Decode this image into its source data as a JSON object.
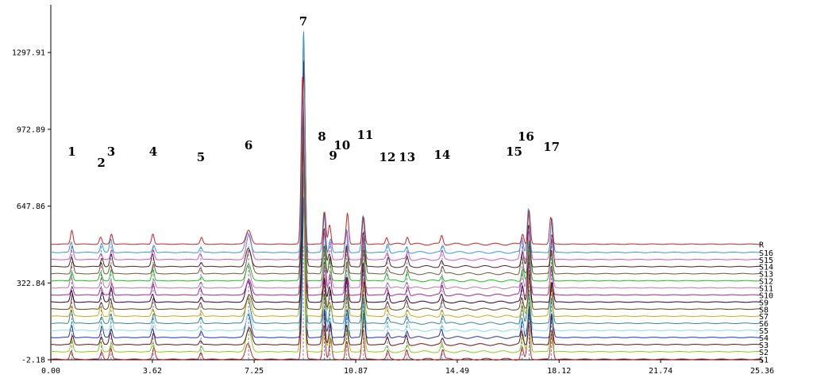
{
  "chart_data": {
    "type": "line",
    "title": "",
    "xlabel": "",
    "ylabel": "",
    "xlim": [
      0,
      25.36
    ],
    "ylim": [
      -2.18,
      1500
    ],
    "x_ticks": [
      "0.00",
      "3.62",
      "7.25",
      "10.87",
      "14.49",
      "18.12",
      "21.74",
      "25.36"
    ],
    "y_ticks": [
      "-2.18",
      "322.84",
      "647.86",
      "972.89",
      "1297.91"
    ],
    "grid": false,
    "legend": "none",
    "series": [
      {
        "name": "S1",
        "color": "#cc2222",
        "offset": 0
      },
      {
        "name": "S2",
        "color": "#88cc22",
        "offset": 32
      },
      {
        "name": "S3",
        "color": "#661111",
        "offset": 62
      },
      {
        "name": "S4",
        "color": "#2233aa",
        "offset": 92
      },
      {
        "name": "S5",
        "color": "#88dddd",
        "offset": 122
      },
      {
        "name": "S6",
        "color": "#338888",
        "offset": 152
      },
      {
        "name": "S7",
        "color": "#ccaa11",
        "offset": 182
      },
      {
        "name": "S8",
        "color": "#664422",
        "offset": 212
      },
      {
        "name": "S9",
        "color": "#330033",
        "offset": 242
      },
      {
        "name": "S10",
        "color": "#aa2299",
        "offset": 272
      },
      {
        "name": "S11",
        "color": "#bb77aa",
        "offset": 302
      },
      {
        "name": "S12",
        "color": "#22bb22",
        "offset": 332
      },
      {
        "name": "S13",
        "color": "#775533",
        "offset": 362
      },
      {
        "name": "S14",
        "color": "#552222",
        "offset": 392
      },
      {
        "name": "S15",
        "color": "#cc55cc",
        "offset": 422
      },
      {
        "name": "S16",
        "color": "#3399dd",
        "offset": 452
      },
      {
        "name": "R",
        "color": "#cc2222",
        "offset": 487
      }
    ],
    "peaks": [
      {
        "label": "1",
        "x": 0.75,
        "height": 45
      },
      {
        "label": "2",
        "x": 1.8,
        "height": 35
      },
      {
        "label": "3",
        "x": 2.15,
        "height": 45
      },
      {
        "label": "4",
        "x": 3.65,
        "height": 40
      },
      {
        "label": "5",
        "x": 5.35,
        "height": 22
      },
      {
        "label": "6",
        "x": 7.05,
        "height": 80
      },
      {
        "label": "7",
        "x": 9.0,
        "height": 800
      },
      {
        "label": "8",
        "x": 9.75,
        "height": 130
      },
      {
        "label": "9",
        "x": 9.95,
        "height": 70
      },
      {
        "label": "10",
        "x": 10.55,
        "height": 100
      },
      {
        "label": "11",
        "x": 11.15,
        "height": 140
      },
      {
        "label": "12",
        "x": 12.0,
        "height": 30
      },
      {
        "label": "13",
        "x": 12.7,
        "height": 30
      },
      {
        "label": "14",
        "x": 13.95,
        "height": 30
      },
      {
        "label": "15",
        "x": 16.8,
        "height": 60
      },
      {
        "label": "16",
        "x": 17.05,
        "height": 160
      },
      {
        "label": "17",
        "x": 17.85,
        "height": 110
      }
    ]
  }
}
